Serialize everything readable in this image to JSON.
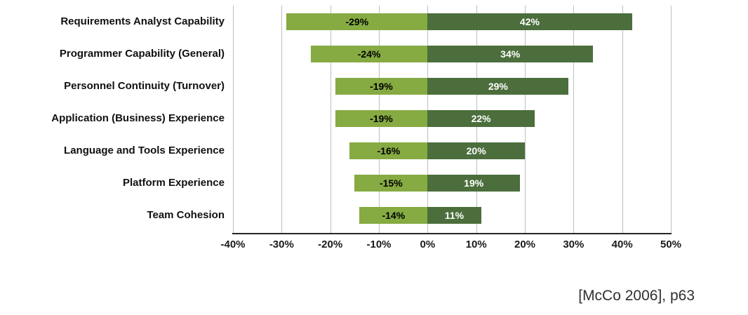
{
  "chart_data": {
    "type": "bar",
    "orientation": "horizontal-diverging",
    "title": "",
    "xlabel": "",
    "ylabel": "",
    "xlim": [
      -40,
      50
    ],
    "tick_step": 10,
    "xticks": [
      -40,
      -30,
      -20,
      -10,
      0,
      10,
      20,
      30,
      40,
      50
    ],
    "xtick_labels": [
      "-40%",
      "-30%",
      "-20%",
      "-10%",
      "0%",
      "10%",
      "20%",
      "30%",
      "40%",
      "50%"
    ],
    "grid": true,
    "legend": "none",
    "colors": {
      "negative_bar": "#86ab42",
      "positive_bar": "#4b6e3c",
      "negative_label_text": "#000000",
      "positive_label_text": "#ffffff",
      "gridline": "#bfbfbf",
      "axis_line": "#262626"
    },
    "rows": [
      {
        "label": "Requirements Analyst Capability",
        "negative": -29,
        "positive": 42,
        "negative_label": "-29%",
        "positive_label": "42%"
      },
      {
        "label": "Programmer Capability (General)",
        "negative": -24,
        "positive": 34,
        "negative_label": "-24%",
        "positive_label": "34%"
      },
      {
        "label": "Personnel Continuity (Turnover)",
        "negative": -19,
        "positive": 29,
        "negative_label": "-19%",
        "positive_label": "29%"
      },
      {
        "label": "Application (Business) Experience",
        "negative": -19,
        "positive": 22,
        "negative_label": "-19%",
        "positive_label": "22%"
      },
      {
        "label": "Language and Tools Experience",
        "negative": -16,
        "positive": 20,
        "negative_label": "-16%",
        "positive_label": "20%"
      },
      {
        "label": "Platform Experience",
        "negative": -15,
        "positive": 19,
        "negative_label": "-15%",
        "positive_label": "19%"
      },
      {
        "label": "Team Cohesion",
        "negative": -14,
        "positive": 11,
        "negative_label": "-14%",
        "positive_label": "11%"
      }
    ]
  },
  "citation": "[McCo 2006], p63"
}
